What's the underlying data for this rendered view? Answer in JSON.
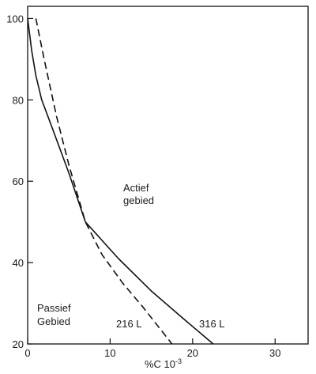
{
  "chart_data": {
    "type": "line",
    "title": "",
    "xlabel": "%C 10",
    "xlabel_exponent": "-3",
    "ylabel": "",
    "xlim": [
      0,
      34
    ],
    "ylim": [
      20,
      103
    ],
    "x_ticks": [
      0,
      10,
      20,
      30
    ],
    "y_ticks": [
      20,
      40,
      60,
      80,
      100
    ],
    "grid": false,
    "legend": "none",
    "series": [
      {
        "name": "316 L",
        "style": "solid",
        "color": "#111111",
        "x": [
          0.0,
          0.5,
          1.0,
          1.7,
          3.0,
          5.0,
          7.0,
          11.0,
          15.0,
          19.0,
          22.5
        ],
        "y": [
          100,
          92,
          86,
          80,
          73,
          62,
          50,
          41,
          33,
          26,
          20
        ]
      },
      {
        "name": "216 L",
        "style": "dashed",
        "color": "#111111",
        "x": [
          1.0,
          2.0,
          3.5,
          5.0,
          7.0,
          9.0,
          11.5,
          14.0,
          17.5
        ],
        "y": [
          100,
          90,
          76,
          64,
          50,
          42,
          35,
          29,
          20
        ]
      }
    ],
    "annotations": {
      "active_region_line1": "Actief",
      "active_region_line2": "gebied",
      "passive_region_line1": "Passief",
      "passive_region_line2": "Gebied"
    }
  }
}
